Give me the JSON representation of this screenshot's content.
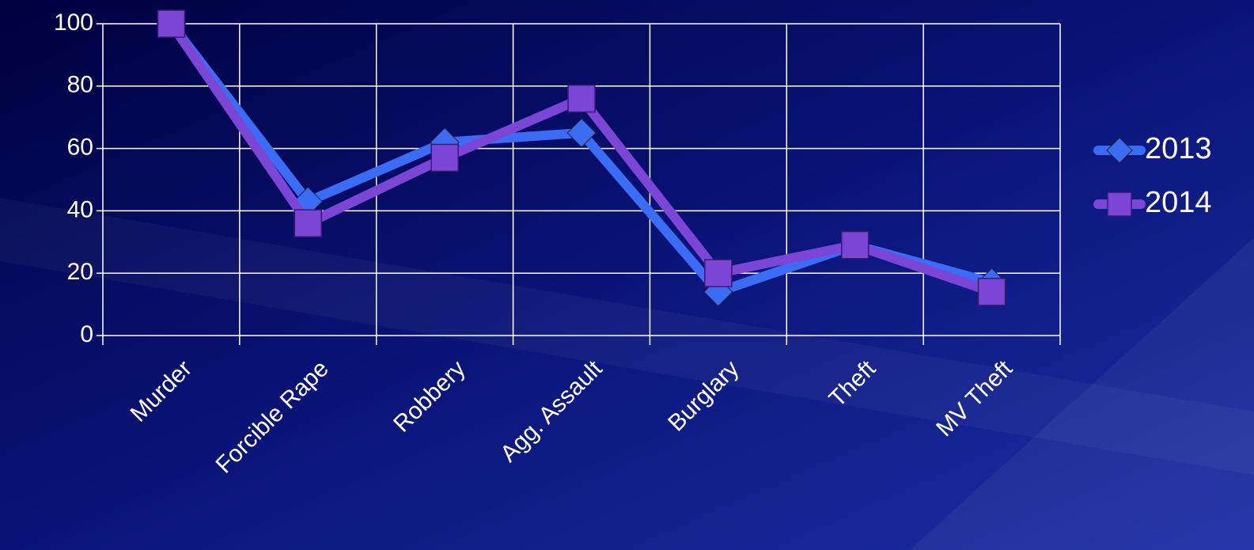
{
  "chart_data": {
    "type": "line",
    "categories": [
      "Murder",
      "Forcible Rape",
      "Robbery",
      "Agg. Assault",
      "Burglary",
      "Theft",
      "MV Theft"
    ],
    "series": [
      {
        "name": "2013",
        "color": "#3a6cf5",
        "marker": "diamond",
        "values": [
          100,
          43,
          62,
          65,
          14,
          29,
          17
        ]
      },
      {
        "name": "2014",
        "color": "#7b45d6",
        "marker": "square",
        "values": [
          100,
          36,
          57,
          76,
          20,
          29,
          14
        ]
      }
    ],
    "ylim": [
      0,
      100
    ],
    "yticks": [
      0,
      20,
      40,
      60,
      80,
      100
    ],
    "grid": true,
    "legend": "right"
  }
}
